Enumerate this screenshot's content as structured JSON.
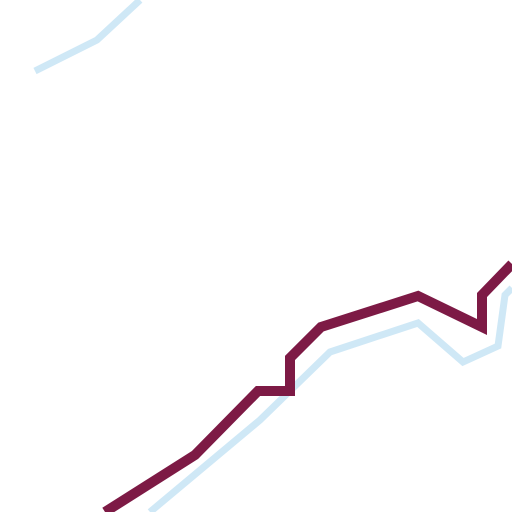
{
  "chart_data": {
    "type": "line",
    "title": "",
    "xlabel": "",
    "ylabel": "",
    "grid": false,
    "legend": "none",
    "series": [
      {
        "color": "#cfe8f6",
        "segments": [
          [
            {
              "x": 35,
              "y": 71
            },
            {
              "x": 97,
              "y": 40
            },
            {
              "x": 140,
              "y": 0
            }
          ],
          [
            {
              "x": 150,
              "y": 512
            },
            {
              "x": 260,
              "y": 420
            },
            {
              "x": 330,
              "y": 352
            },
            {
              "x": 418,
              "y": 323
            },
            {
              "x": 463,
              "y": 362
            },
            {
              "x": 498,
              "y": 346
            },
            {
              "x": 505,
              "y": 295
            },
            {
              "x": 512,
              "y": 288
            }
          ]
        ]
      },
      {
        "color": "#7d1a45",
        "segments": [
          [
            {
              "x": 105,
              "y": 512
            },
            {
              "x": 195,
              "y": 455
            },
            {
              "x": 258,
              "y": 391
            },
            {
              "x": 290,
              "y": 391
            },
            {
              "x": 290,
              "y": 358
            },
            {
              "x": 321,
              "y": 327
            },
            {
              "x": 418,
              "y": 296
            },
            {
              "x": 482,
              "y": 327
            },
            {
              "x": 482,
              "y": 295
            },
            {
              "x": 512,
              "y": 264
            }
          ]
        ]
      }
    ]
  }
}
